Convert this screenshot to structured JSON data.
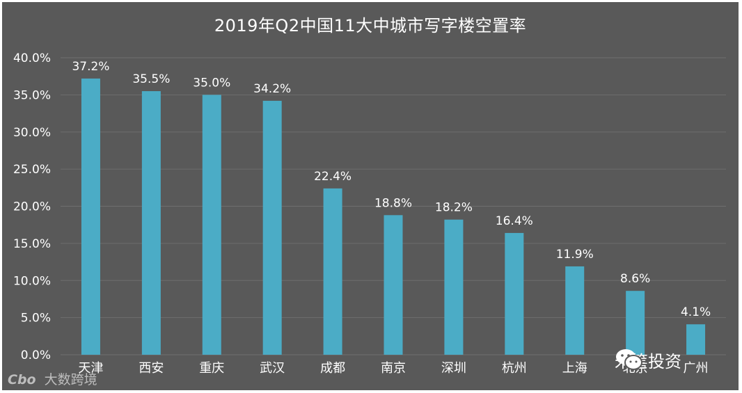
{
  "chart_data": {
    "type": "bar",
    "title": "2019年Q2中国11大中城市写字楼空置率",
    "categories": [
      "天津",
      "西安",
      "重庆",
      "武汉",
      "成都",
      "南京",
      "深圳",
      "杭州",
      "上海",
      "北京",
      "广州"
    ],
    "values": [
      37.2,
      35.5,
      35.0,
      34.2,
      22.4,
      18.8,
      18.2,
      16.4,
      11.9,
      8.6,
      4.1
    ],
    "data_labels": [
      "37.2%",
      "35.5%",
      "35.0%",
      "34.2%",
      "22.4%",
      "18.8%",
      "18.2%",
      "16.4%",
      "11.9%",
      "8.6%",
      "4.1%"
    ],
    "y_ticks": [
      "0.0%",
      "5.0%",
      "10.0%",
      "15.0%",
      "20.0%",
      "25.0%",
      "30.0%",
      "35.0%",
      "40.0%"
    ],
    "ylim": [
      0,
      40
    ],
    "xlabel": "",
    "ylabel": "",
    "grid": true,
    "legend": "none",
    "colors": {
      "bar": "#4bacc6",
      "background": "#595959",
      "text": "#ffffff",
      "grid": "#6e6e6e"
    }
  },
  "watermarks": {
    "left_logo": "Cbo",
    "left_text": "大数跨境",
    "right_text": "米筐投资"
  }
}
